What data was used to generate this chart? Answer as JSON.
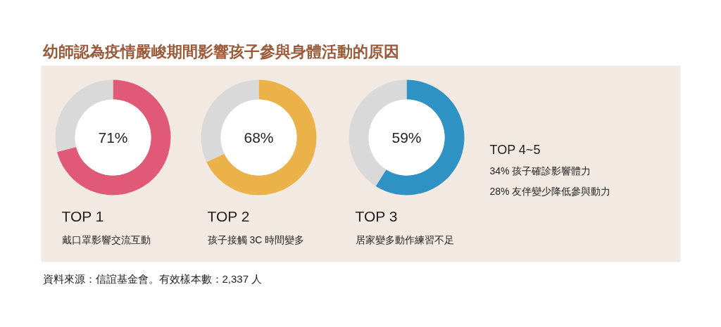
{
  "chart_data": [
    {
      "type": "other",
      "title": "幼師認為疫情嚴峻期間影響孩子參與身體活動的原因",
      "annotations": [
        "資料來源：信誼基金會。有效樣本數：2,337 人"
      ]
    },
    {
      "type": "donut",
      "title": "TOP 1",
      "subtitle": "戴口罩影響交流互動",
      "categories": [
        null,
        null
      ],
      "values": [
        71,
        29
      ],
      "colors": [
        "#e05a78",
        "#d9d9d9"
      ],
      "annotations": [
        "71%"
      ]
    },
    {
      "type": "donut",
      "title": "TOP 2",
      "subtitle": "孩子接觸 3C 時間變多",
      "categories": [
        null,
        null
      ],
      "values": [
        68,
        32
      ],
      "colors": [
        "#ebb24a",
        "#d9d9d9"
      ],
      "annotations": [
        "68%"
      ]
    },
    {
      "type": "donut",
      "title": "TOP 3",
      "subtitle": "居家變多動作練習不足",
      "categories": [
        null,
        null
      ],
      "values": [
        59,
        41
      ],
      "colors": [
        "#2f92c4",
        "#d9d9d9"
      ],
      "annotations": [
        "59%"
      ]
    },
    {
      "type": "other",
      "title": "TOP 4~5",
      "annotations": [
        "34%  孩子確診影響體力",
        "28%  友伴變少降低參與動力"
      ]
    }
  ]
}
